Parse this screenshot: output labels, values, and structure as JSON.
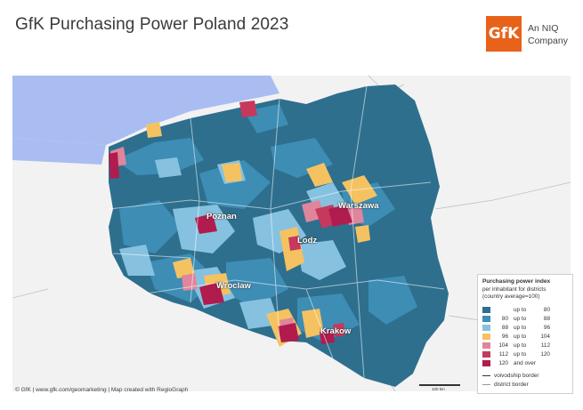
{
  "title": "GfK Purchasing Power Poland 2023",
  "logo": {
    "mark": "GfK",
    "line1": "An NIQ",
    "line2": "Company",
    "color": "#e8621a"
  },
  "cities": [
    {
      "name": "Warszawa",
      "index_class": "120 and over"
    },
    {
      "name": "Poznan",
      "index_class": "120 and over"
    },
    {
      "name": "Lodz",
      "index_class": "112 up to 120"
    },
    {
      "name": "Wroclaw",
      "index_class": "120 and over"
    },
    {
      "name": "Krakow",
      "index_class": "120 and over"
    }
  ],
  "legend": {
    "title": "Purchasing power index",
    "subtitle_line1": "per inhabitant for districts",
    "subtitle_line2": "(country average=100)",
    "classes": [
      {
        "lo": "",
        "mid": "up to",
        "hi": "80",
        "color": "#2e6f8e"
      },
      {
        "lo": "80",
        "mid": "up to",
        "hi": "88",
        "color": "#3d8db5"
      },
      {
        "lo": "88",
        "mid": "up to",
        "hi": "96",
        "color": "#86c2e0"
      },
      {
        "lo": "96",
        "mid": "up to",
        "hi": "104",
        "color": "#f5c261"
      },
      {
        "lo": "104",
        "mid": "up to",
        "hi": "112",
        "color": "#e0859b"
      },
      {
        "lo": "112",
        "mid": "up to",
        "hi": "120",
        "color": "#c6395d"
      },
      {
        "lo": "120",
        "mid": "and over",
        "hi": "",
        "color": "#b01c4d"
      }
    ],
    "voivodship_border": "voivodship border",
    "district_border": "district border"
  },
  "map": {
    "sea_color": "#a9bdf3",
    "neighbour_color": "#f2f2f2",
    "border_line_color": "#9aa7b0"
  },
  "scale_label": "100 km",
  "credit": "© GfK | www.gfk.com/geomarketing | Map created with RegioGraph"
}
